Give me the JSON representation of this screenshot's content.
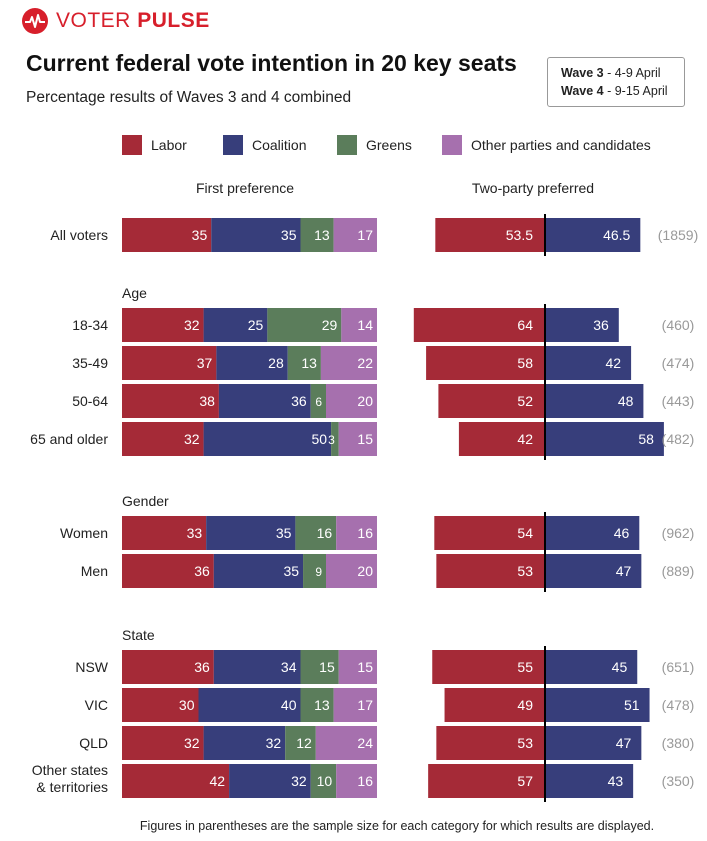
{
  "brand": {
    "name_part1": "VOTER",
    "name_part2": "PULSE"
  },
  "title": "Current federal vote intention in 20 key seats",
  "subtitle": "Percentage results of Waves 3 and 4 combined",
  "waves": [
    {
      "label": "Wave 3",
      "dates": " - 4-9 April"
    },
    {
      "label": "Wave 4",
      "dates": " - 9-15 April"
    }
  ],
  "legend": [
    {
      "label": "Labor",
      "color": "#a52a37"
    },
    {
      "label": "Coalition",
      "color": "#373e7b"
    },
    {
      "label": "Greens",
      "color": "#5b7d5b"
    },
    {
      "label": "Other parties and candidates",
      "color": "#a670ae"
    }
  ],
  "headers": {
    "first_pref": "First preference",
    "tpp": "Two-party preferred"
  },
  "footer": "Figures in parentheses are the sample size for each category for which results are displayed.",
  "chart_data": {
    "type": "bar",
    "title": "Current federal vote intention in 20 key seats",
    "colors": {
      "labor": "#a52a37",
      "coalition": "#373e7b",
      "greens": "#5b7d5b",
      "other": "#a670ae",
      "n": "#999999"
    },
    "first_pref_series": [
      "Labor",
      "Coalition",
      "Greens",
      "Other parties and candidates"
    ],
    "tpp_series": [
      "Labor",
      "Coalition"
    ],
    "groups": [
      {
        "heading": "",
        "rows": [
          {
            "label": "All voters",
            "first_pref": [
              35,
              35,
              13,
              17
            ],
            "tpp": [
              53.5,
              46.5
            ],
            "n": "(1859)"
          }
        ]
      },
      {
        "heading": "Age",
        "rows": [
          {
            "label": "18-34",
            "first_pref": [
              32,
              25,
              29,
              14
            ],
            "tpp": [
              64,
              36
            ],
            "n": "(460)"
          },
          {
            "label": "35-49",
            "first_pref": [
              37,
              28,
              13,
              22
            ],
            "tpp": [
              58,
              42
            ],
            "n": "(474)"
          },
          {
            "label": "50-64",
            "first_pref": [
              38,
              36,
              6,
              20
            ],
            "tpp": [
              52,
              48
            ],
            "n": "(443)"
          },
          {
            "label": "65 and older",
            "first_pref": [
              32,
              50,
              3,
              15
            ],
            "tpp": [
              42,
              58
            ],
            "n": "(482)"
          }
        ]
      },
      {
        "heading": "Gender",
        "rows": [
          {
            "label": "Women",
            "first_pref": [
              33,
              35,
              16,
              16
            ],
            "tpp": [
              54,
              46
            ],
            "n": "(962)"
          },
          {
            "label": "Men",
            "first_pref": [
              36,
              35,
              9,
              20
            ],
            "tpp": [
              53,
              47
            ],
            "n": "(889)"
          }
        ]
      },
      {
        "heading": "State",
        "rows": [
          {
            "label": "NSW",
            "first_pref": [
              36,
              34,
              15,
              15
            ],
            "tpp": [
              55,
              45
            ],
            "n": "(651)"
          },
          {
            "label": "VIC",
            "first_pref": [
              30,
              40,
              13,
              17
            ],
            "tpp": [
              49,
              51
            ],
            "n": "(478)"
          },
          {
            "label": "QLD",
            "first_pref": [
              32,
              32,
              12,
              24
            ],
            "tpp": [
              53,
              47
            ],
            "n": "(380)"
          },
          {
            "label": "Other states\n& territories",
            "first_pref": [
              42,
              32,
              10,
              16
            ],
            "tpp": [
              57,
              43
            ],
            "n": "(350)"
          }
        ]
      }
    ]
  }
}
